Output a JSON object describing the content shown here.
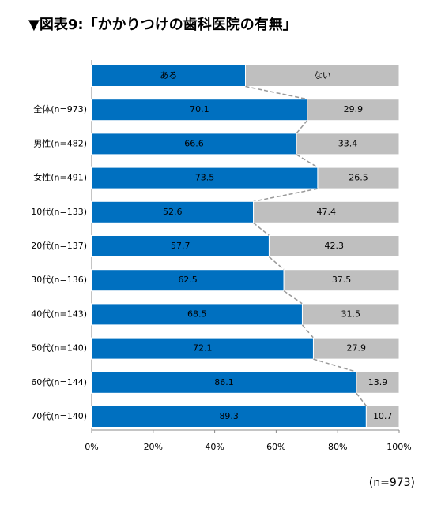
{
  "chart_data": {
    "type": "stacked-bar-horizontal",
    "title": "▼図表9:「かかりつけの歯科医院の有無」",
    "note": "(n=973)",
    "categories": [
      "全体(n=973)",
      "男性(n=482)",
      "女性(n=491)",
      "10代(n=133)",
      "20代(n=137)",
      "30代(n=136)",
      "40代(n=143)",
      "50代(n=140)",
      "60代(n=144)",
      "70代(n=140)"
    ],
    "series": [
      {
        "name": "ある",
        "color": "#0070c0",
        "values": [
          70.1,
          66.6,
          73.5,
          52.6,
          57.7,
          62.5,
          68.5,
          72.1,
          86.1,
          89.3
        ]
      },
      {
        "name": "ない",
        "color": "#bfbfbf",
        "values": [
          29.9,
          33.4,
          26.5,
          47.4,
          42.3,
          37.5,
          31.5,
          27.9,
          13.9,
          10.7
        ]
      }
    ],
    "xlim": [
      0,
      100
    ],
    "xticks": [
      {
        "value": 0,
        "label": "0%"
      },
      {
        "value": 20,
        "label": "20%"
      },
      {
        "value": 40,
        "label": "40%"
      },
      {
        "value": 60,
        "label": "60%"
      },
      {
        "value": 80,
        "label": "80%"
      },
      {
        "value": 100,
        "label": "100%"
      }
    ]
  }
}
